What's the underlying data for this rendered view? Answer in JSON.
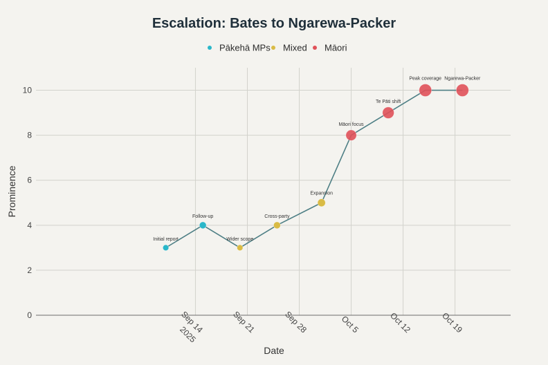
{
  "chart_data": {
    "type": "line",
    "title": "Escalation: Bates to Ngarewa-Packer",
    "xlabel": "Date",
    "ylabel": "Prominence",
    "ylim": [
      0,
      11
    ],
    "yticks": [
      0,
      2,
      4,
      6,
      8,
      10
    ],
    "xlim_days": [
      -21.5,
      42.5
    ],
    "xticks": [
      {
        "day": 0,
        "label": "Sep 14",
        "sublabel": "2025"
      },
      {
        "day": 7,
        "label": "Sep 21"
      },
      {
        "day": 14,
        "label": "Sep 28"
      },
      {
        "day": 21,
        "label": "Oct 5"
      },
      {
        "day": 28,
        "label": "Oct 12"
      },
      {
        "day": 35,
        "label": "Oct 19"
      }
    ],
    "grid": true,
    "legend_position": "top-center",
    "legend": [
      {
        "key": "pakeha",
        "name": "Pākehā MPs",
        "color": "#2ab7c9"
      },
      {
        "key": "mixed",
        "name": "Mixed",
        "color": "#d9bb45"
      },
      {
        "key": "maori",
        "name": "Māori",
        "color": "#e05159"
      }
    ],
    "line_color": "#4e7f85",
    "points": [
      {
        "day": -4,
        "y": 3,
        "category": "pakeha",
        "label": "Initial report",
        "size": 3
      },
      {
        "day": 1,
        "y": 4,
        "category": "pakeha",
        "label": "Follow-up",
        "size": 4
      },
      {
        "day": 6,
        "y": 3,
        "category": "mixed",
        "label": "Wider scope",
        "size": 3
      },
      {
        "day": 11,
        "y": 4,
        "category": "mixed",
        "label": "Cross-party",
        "size": 4
      },
      {
        "day": 17,
        "y": 5,
        "category": "mixed",
        "label": "Expansion",
        "size": 5
      },
      {
        "day": 21,
        "y": 8,
        "category": "maori",
        "label": "Māori focus",
        "size": 8
      },
      {
        "day": 26,
        "y": 9,
        "category": "maori",
        "label": "Te Pāti shift",
        "size": 9
      },
      {
        "day": 31,
        "y": 10,
        "category": "maori",
        "label": "Peak coverage",
        "size": 10
      },
      {
        "day": 36,
        "y": 10,
        "category": "maori",
        "label": "Ngarewa-Packer",
        "size": 10
      }
    ]
  }
}
